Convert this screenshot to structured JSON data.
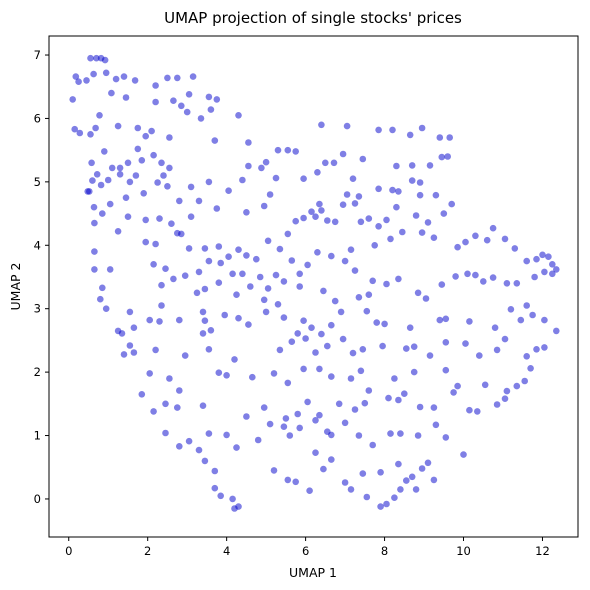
{
  "chart_data": {
    "type": "scatter",
    "title": "UMAP projection of single stocks' prices",
    "xlabel": "UMAP 1",
    "ylabel": "UMAP 2",
    "xlim": [
      -0.5,
      12.9
    ],
    "ylim": [
      -0.6,
      7.3
    ],
    "xticks": [
      0,
      2,
      4,
      6,
      8,
      10,
      12
    ],
    "yticks": [
      0,
      1,
      2,
      3,
      4,
      5,
      6,
      7
    ],
    "grid": false,
    "legend": "none",
    "marker_color": "#0000cc",
    "points": [
      [
        0.1,
        6.3
      ],
      [
        0.15,
        5.83
      ],
      [
        0.18,
        6.66
      ],
      [
        0.25,
        6.58
      ],
      [
        0.28,
        5.77
      ],
      [
        0.45,
        6.6
      ],
      [
        0.55,
        6.95
      ],
      [
        0.63,
        6.7
      ],
      [
        0.7,
        6.95
      ],
      [
        0.82,
        6.95
      ],
      [
        0.92,
        6.92
      ],
      [
        0.95,
        6.72
      ],
      [
        1.2,
        6.62
      ],
      [
        1.4,
        6.66
      ],
      [
        1.68,
        6.6
      ],
      [
        2.2,
        6.52
      ],
      [
        2.5,
        6.64
      ],
      [
        2.75,
        6.64
      ],
      [
        3.15,
        6.66
      ],
      [
        2.2,
        6.26
      ],
      [
        2.65,
        6.28
      ],
      [
        2.85,
        6.2
      ],
      [
        3.0,
        6.1
      ],
      [
        3.05,
        6.38
      ],
      [
        3.55,
        6.34
      ],
      [
        3.6,
        6.14
      ],
      [
        3.75,
        6.3
      ],
      [
        3.35,
        6.0
      ],
      [
        4.3,
        6.05
      ],
      [
        1.08,
        6.4
      ],
      [
        1.45,
        6.33
      ],
      [
        0.78,
        6.05
      ],
      [
        0.68,
        5.85
      ],
      [
        0.55,
        5.75
      ],
      [
        1.25,
        5.88
      ],
      [
        1.75,
        5.85
      ],
      [
        2.1,
        5.8
      ],
      [
        1.95,
        5.72
      ],
      [
        2.55,
        5.7
      ],
      [
        3.7,
        5.65
      ],
      [
        4.55,
        5.62
      ],
      [
        6.4,
        5.9
      ],
      [
        7.05,
        5.88
      ],
      [
        7.85,
        5.82
      ],
      [
        8.2,
        5.82
      ],
      [
        8.65,
        5.74
      ],
      [
        8.95,
        5.85
      ],
      [
        9.4,
        5.7
      ],
      [
        9.65,
        5.7
      ],
      [
        1.75,
        5.52
      ],
      [
        0.9,
        5.48
      ],
      [
        0.58,
        5.3
      ],
      [
        0.72,
        5.12
      ],
      [
        1.1,
        5.22
      ],
      [
        1.3,
        5.22
      ],
      [
        1.5,
        5.3
      ],
      [
        1.85,
        5.34
      ],
      [
        2.15,
        5.42
      ],
      [
        2.35,
        5.3
      ],
      [
        2.55,
        5.22
      ],
      [
        2.4,
        5.1
      ],
      [
        2.25,
        4.99
      ],
      [
        1.7,
        5.1
      ],
      [
        1.55,
        5.0
      ],
      [
        1.3,
        5.12
      ],
      [
        1.0,
        5.03
      ],
      [
        0.82,
        4.95
      ],
      [
        0.6,
        5.02
      ],
      [
        0.48,
        4.85
      ],
      [
        0.52,
        4.85
      ],
      [
        0.64,
        4.6
      ],
      [
        0.65,
        4.35
      ],
      [
        0.85,
        4.5
      ],
      [
        1.05,
        4.65
      ],
      [
        1.45,
        4.75
      ],
      [
        1.9,
        4.82
      ],
      [
        2.5,
        4.93
      ],
      [
        3.1,
        4.92
      ],
      [
        3.55,
        5.0
      ],
      [
        4.05,
        4.86
      ],
      [
        4.4,
        5.03
      ],
      [
        4.55,
        5.25
      ],
      [
        4.88,
        5.22
      ],
      [
        5.0,
        5.31
      ],
      [
        5.3,
        5.5
      ],
      [
        5.55,
        5.5
      ],
      [
        5.75,
        5.48
      ],
      [
        5.25,
        5.06
      ],
      [
        5.1,
        4.8
      ],
      [
        4.95,
        4.62
      ],
      [
        4.5,
        4.52
      ],
      [
        3.75,
        4.58
      ],
      [
        3.3,
        4.7
      ],
      [
        3.1,
        4.45
      ],
      [
        2.8,
        4.7
      ],
      [
        2.3,
        4.42
      ],
      [
        2.6,
        4.34
      ],
      [
        1.95,
        4.4
      ],
      [
        1.5,
        4.45
      ],
      [
        1.25,
        4.22
      ],
      [
        1.95,
        4.05
      ],
      [
        2.2,
        4.02
      ],
      [
        2.75,
        4.19
      ],
      [
        2.85,
        4.18
      ],
      [
        3.05,
        3.95
      ],
      [
        3.45,
        3.95
      ],
      [
        3.8,
        3.98
      ],
      [
        4.05,
        3.82
      ],
      [
        4.3,
        3.93
      ],
      [
        4.5,
        3.84
      ],
      [
        4.75,
        3.78
      ],
      [
        5.05,
        4.07
      ],
      [
        5.35,
        3.94
      ],
      [
        5.55,
        4.18
      ],
      [
        5.75,
        4.38
      ],
      [
        5.95,
        4.43
      ],
      [
        6.15,
        4.53
      ],
      [
        6.25,
        4.45
      ],
      [
        6.35,
        4.65
      ],
      [
        6.4,
        4.55
      ],
      [
        6.55,
        4.39
      ],
      [
        6.75,
        4.37
      ],
      [
        6.95,
        4.64
      ],
      [
        7.25,
        4.66
      ],
      [
        7.05,
        4.8
      ],
      [
        7.35,
        4.77
      ],
      [
        7.85,
        4.89
      ],
      [
        8.2,
        4.87
      ],
      [
        8.35,
        4.85
      ],
      [
        8.9,
        4.79
      ],
      [
        9.3,
        4.79
      ],
      [
        9.7,
        4.65
      ],
      [
        9.5,
        4.5
      ],
      [
        9.1,
        4.36
      ],
      [
        8.8,
        4.47
      ],
      [
        8.3,
        4.6
      ],
      [
        8.05,
        4.4
      ],
      [
        7.85,
        4.3
      ],
      [
        7.6,
        4.42
      ],
      [
        7.4,
        4.37
      ],
      [
        5.95,
        5.05
      ],
      [
        6.3,
        5.15
      ],
      [
        6.5,
        5.3
      ],
      [
        6.72,
        5.3
      ],
      [
        6.95,
        5.44
      ],
      [
        7.45,
        5.36
      ],
      [
        8.3,
        5.25
      ],
      [
        8.7,
        5.26
      ],
      [
        9.15,
        5.26
      ],
      [
        9.45,
        5.39
      ],
      [
        9.6,
        5.4
      ],
      [
        7.2,
        5.05
      ],
      [
        8.7,
        5.02
      ],
      [
        8.9,
        4.99
      ],
      [
        2.15,
        3.7
      ],
      [
        2.45,
        3.63
      ],
      [
        2.65,
        3.47
      ],
      [
        2.95,
        3.52
      ],
      [
        3.3,
        3.58
      ],
      [
        3.55,
        3.75
      ],
      [
        3.85,
        3.72
      ],
      [
        4.15,
        3.55
      ],
      [
        4.4,
        3.55
      ],
      [
        4.6,
        3.35
      ],
      [
        4.85,
        3.5
      ],
      [
        5.05,
        3.32
      ],
      [
        5.25,
        3.53
      ],
      [
        5.45,
        3.43
      ],
      [
        5.65,
        3.76
      ],
      [
        5.85,
        3.55
      ],
      [
        6.05,
        3.69
      ],
      [
        6.3,
        3.89
      ],
      [
        6.65,
        3.83
      ],
      [
        7.0,
        3.75
      ],
      [
        7.25,
        3.6
      ],
      [
        7.15,
        3.93
      ],
      [
        7.75,
        4.0
      ],
      [
        8.15,
        4.1
      ],
      [
        8.45,
        4.21
      ],
      [
        8.95,
        4.2
      ],
      [
        9.25,
        4.12
      ],
      [
        9.85,
        3.97
      ],
      [
        10.05,
        4.05
      ],
      [
        10.3,
        4.15
      ],
      [
        10.6,
        4.08
      ],
      [
        10.75,
        4.27
      ],
      [
        11.05,
        4.1
      ],
      [
        11.3,
        3.95
      ],
      [
        11.6,
        3.75
      ],
      [
        11.85,
        3.78
      ],
      [
        12.0,
        3.85
      ],
      [
        12.15,
        3.82
      ],
      [
        12.25,
        3.7
      ],
      [
        12.35,
        3.62
      ],
      [
        0.65,
        3.9
      ],
      [
        0.65,
        3.62
      ],
      [
        1.05,
        3.62
      ],
      [
        2.35,
        3.37
      ],
      [
        3.25,
        3.25
      ],
      [
        3.45,
        3.31
      ],
      [
        3.8,
        3.41
      ],
      [
        4.25,
        3.22
      ],
      [
        4.95,
        3.14
      ],
      [
        5.3,
        3.07
      ],
      [
        5.85,
        3.35
      ],
      [
        6.45,
        3.28
      ],
      [
        6.75,
        3.12
      ],
      [
        7.35,
        3.18
      ],
      [
        7.6,
        3.22
      ],
      [
        7.7,
        3.44
      ],
      [
        8.05,
        3.39
      ],
      [
        8.35,
        3.47
      ],
      [
        8.85,
        3.25
      ],
      [
        9.05,
        3.16
      ],
      [
        9.45,
        3.38
      ],
      [
        9.8,
        3.51
      ],
      [
        10.1,
        3.55
      ],
      [
        10.3,
        3.53
      ],
      [
        10.5,
        3.43
      ],
      [
        10.75,
        3.49
      ],
      [
        11.1,
        3.4
      ],
      [
        11.35,
        3.4
      ],
      [
        11.8,
        3.5
      ],
      [
        12.05,
        3.58
      ],
      [
        12.25,
        3.55
      ],
      [
        0.85,
        3.33
      ],
      [
        0.8,
        3.15
      ],
      [
        0.95,
        3.0
      ],
      [
        1.55,
        2.95
      ],
      [
        1.65,
        2.7
      ],
      [
        2.05,
        2.82
      ],
      [
        2.35,
        3.05
      ],
      [
        2.3,
        2.8
      ],
      [
        2.8,
        2.82
      ],
      [
        3.4,
        2.95
      ],
      [
        3.45,
        2.81
      ],
      [
        3.6,
        2.66
      ],
      [
        3.95,
        2.9
      ],
      [
        4.3,
        2.85
      ],
      [
        4.55,
        2.75
      ],
      [
        5.0,
        2.95
      ],
      [
        5.45,
        2.86
      ],
      [
        5.95,
        2.81
      ],
      [
        6.15,
        2.7
      ],
      [
        6.4,
        2.6
      ],
      [
        6.65,
        2.74
      ],
      [
        6.9,
        2.95
      ],
      [
        7.55,
        2.96
      ],
      [
        7.8,
        2.78
      ],
      [
        8.0,
        2.76
      ],
      [
        8.65,
        2.7
      ],
      [
        9.4,
        2.82
      ],
      [
        9.55,
        2.84
      ],
      [
        10.15,
        2.8
      ],
      [
        10.8,
        2.7
      ],
      [
        11.2,
        2.99
      ],
      [
        11.45,
        2.82
      ],
      [
        11.6,
        3.05
      ],
      [
        11.75,
        2.9
      ],
      [
        12.05,
        2.82
      ],
      [
        12.35,
        2.65
      ],
      [
        1.25,
        2.65
      ],
      [
        1.35,
        2.61
      ],
      [
        1.4,
        2.28
      ],
      [
        1.55,
        2.42
      ],
      [
        1.65,
        2.31
      ],
      [
        2.2,
        2.35
      ],
      [
        2.95,
        2.26
      ],
      [
        3.4,
        2.61
      ],
      [
        3.55,
        2.36
      ],
      [
        4.2,
        2.2
      ],
      [
        5.35,
        2.35
      ],
      [
        5.65,
        2.48
      ],
      [
        5.8,
        2.61
      ],
      [
        6.0,
        2.53
      ],
      [
        6.25,
        2.31
      ],
      [
        6.55,
        2.41
      ],
      [
        6.95,
        2.52
      ],
      [
        7.45,
        2.36
      ],
      [
        7.2,
        2.3
      ],
      [
        7.95,
        2.41
      ],
      [
        8.55,
        2.37
      ],
      [
        8.75,
        2.4
      ],
      [
        9.15,
        2.26
      ],
      [
        9.55,
        2.47
      ],
      [
        10.05,
        2.45
      ],
      [
        10.4,
        2.26
      ],
      [
        10.85,
        2.35
      ],
      [
        11.05,
        2.52
      ],
      [
        11.6,
        2.25
      ],
      [
        11.7,
        2.06
      ],
      [
        11.85,
        2.36
      ],
      [
        12.05,
        2.39
      ],
      [
        1.85,
        1.65
      ],
      [
        2.05,
        1.98
      ],
      [
        2.55,
        1.9
      ],
      [
        2.8,
        1.71
      ],
      [
        3.8,
        1.99
      ],
      [
        4.0,
        1.95
      ],
      [
        4.65,
        1.92
      ],
      [
        5.2,
        1.98
      ],
      [
        5.55,
        1.83
      ],
      [
        5.95,
        2.05
      ],
      [
        6.35,
        2.05
      ],
      [
        6.65,
        1.93
      ],
      [
        7.15,
        1.9
      ],
      [
        7.4,
        2.02
      ],
      [
        8.25,
        1.9
      ],
      [
        8.75,
        2.0
      ],
      [
        9.55,
        2.03
      ],
      [
        9.85,
        1.78
      ],
      [
        10.55,
        1.8
      ],
      [
        11.1,
        1.7
      ],
      [
        11.35,
        1.78
      ],
      [
        11.55,
        1.86
      ],
      [
        2.15,
        1.38
      ],
      [
        2.45,
        1.5
      ],
      [
        2.75,
        1.44
      ],
      [
        3.4,
        1.47
      ],
      [
        4.5,
        1.3
      ],
      [
        4.95,
        1.44
      ],
      [
        5.5,
        1.27
      ],
      [
        5.8,
        1.34
      ],
      [
        6.05,
        1.53
      ],
      [
        6.35,
        1.32
      ],
      [
        6.85,
        1.5
      ],
      [
        7.25,
        1.41
      ],
      [
        7.5,
        1.51
      ],
      [
        7.6,
        1.71
      ],
      [
        8.1,
        1.59
      ],
      [
        8.35,
        1.56
      ],
      [
        8.5,
        1.66
      ],
      [
        8.9,
        1.45
      ],
      [
        9.25,
        1.44
      ],
      [
        9.75,
        1.68
      ],
      [
        10.15,
        1.4
      ],
      [
        10.35,
        1.38
      ],
      [
        10.85,
        1.49
      ],
      [
        11.05,
        1.58
      ],
      [
        2.45,
        1.04
      ],
      [
        2.8,
        0.83
      ],
      [
        3.05,
        0.91
      ],
      [
        3.3,
        0.77
      ],
      [
        3.55,
        1.03
      ],
      [
        4.0,
        1.01
      ],
      [
        4.25,
        0.81
      ],
      [
        4.8,
        0.93
      ],
      [
        5.1,
        1.18
      ],
      [
        5.45,
        1.14
      ],
      [
        5.6,
        1.0
      ],
      [
        5.85,
        1.12
      ],
      [
        6.25,
        1.24
      ],
      [
        6.55,
        1.06
      ],
      [
        6.65,
        1.01
      ],
      [
        7.0,
        1.2
      ],
      [
        7.35,
        1.0
      ],
      [
        7.7,
        0.85
      ],
      [
        8.15,
        1.03
      ],
      [
        8.4,
        1.03
      ],
      [
        8.85,
        1.0
      ],
      [
        9.3,
        1.17
      ],
      [
        9.55,
        0.97
      ],
      [
        10.0,
        0.7
      ],
      [
        3.45,
        0.6
      ],
      [
        3.7,
        0.44
      ],
      [
        5.2,
        0.45
      ],
      [
        5.55,
        0.3
      ],
      [
        6.25,
        0.73
      ],
      [
        6.45,
        0.47
      ],
      [
        6.65,
        0.62
      ],
      [
        7.0,
        0.26
      ],
      [
        7.45,
        0.4
      ],
      [
        7.9,
        0.42
      ],
      [
        8.35,
        0.55
      ],
      [
        8.55,
        0.29
      ],
      [
        8.7,
        0.35
      ],
      [
        8.95,
        0.48
      ],
      [
        9.1,
        0.57
      ],
      [
        3.7,
        0.17
      ],
      [
        3.85,
        0.05
      ],
      [
        4.15,
        0.0
      ],
      [
        4.2,
        -0.15
      ],
      [
        4.3,
        -0.12
      ],
      [
        5.75,
        0.27
      ],
      [
        6.1,
        0.13
      ],
      [
        7.15,
        0.15
      ],
      [
        7.55,
        0.03
      ],
      [
        7.9,
        -0.12
      ],
      [
        8.05,
        -0.08
      ],
      [
        8.4,
        0.15
      ],
      [
        8.8,
        0.15
      ],
      [
        9.25,
        0.3
      ],
      [
        8.25,
        0.02
      ]
    ]
  }
}
